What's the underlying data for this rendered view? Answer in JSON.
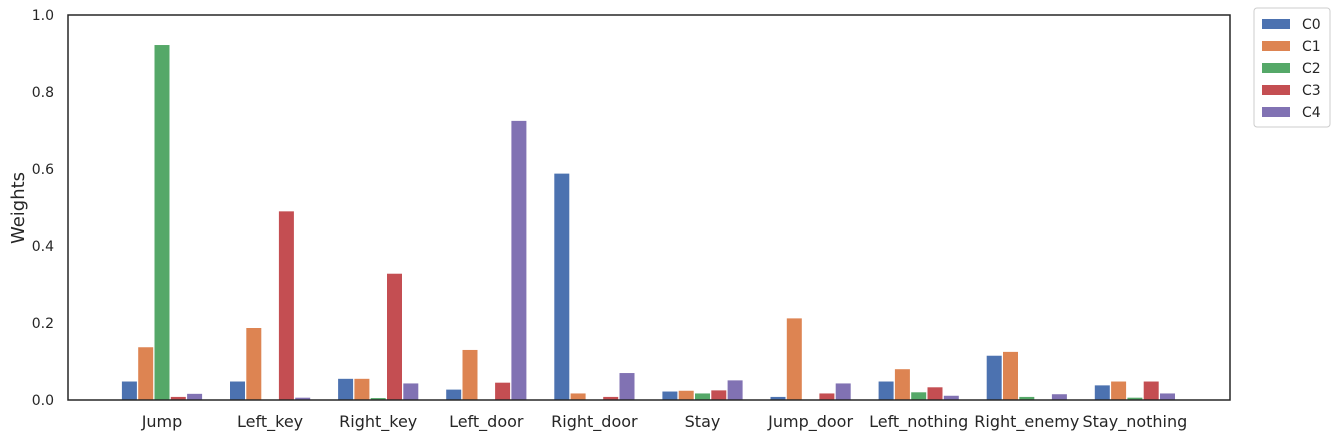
{
  "chart_data": {
    "type": "bar",
    "title": "",
    "xlabel": "",
    "ylabel": "Weights",
    "ylim": [
      0,
      1.0
    ],
    "yticks": [
      "0.0",
      "0.2",
      "0.4",
      "0.6",
      "0.8",
      "1.0"
    ],
    "grid": false,
    "legend_position": "outside-top-right",
    "categories": [
      "Jump",
      "Left_key",
      "Right_key",
      "Left_door",
      "Right_door",
      "Stay",
      "Jump_door",
      "Left_nothing",
      "Right_enemy",
      "Stay_nothing"
    ],
    "series": [
      {
        "name": "C0",
        "color": "#4c72b0",
        "values": [
          0.048,
          0.048,
          0.055,
          0.027,
          0.588,
          0.022,
          0.008,
          0.048,
          0.115,
          0.038
        ]
      },
      {
        "name": "C1",
        "color": "#dd8452",
        "values": [
          0.137,
          0.187,
          0.055,
          0.13,
          0.017,
          0.024,
          0.212,
          0.08,
          0.125,
          0.048
        ]
      },
      {
        "name": "C2",
        "color": "#55a868",
        "values": [
          0.922,
          0.0,
          0.005,
          0.0,
          0.0,
          0.017,
          0.0,
          0.02,
          0.008,
          0.006
        ]
      },
      {
        "name": "C3",
        "color": "#c44e52",
        "values": [
          0.008,
          0.49,
          0.328,
          0.045,
          0.008,
          0.025,
          0.017,
          0.033,
          0.0,
          0.048
        ]
      },
      {
        "name": "C4",
        "color": "#8172b3",
        "values": [
          0.016,
          0.006,
          0.043,
          0.725,
          0.07,
          0.051,
          0.043,
          0.011,
          0.015,
          0.017
        ]
      }
    ]
  }
}
